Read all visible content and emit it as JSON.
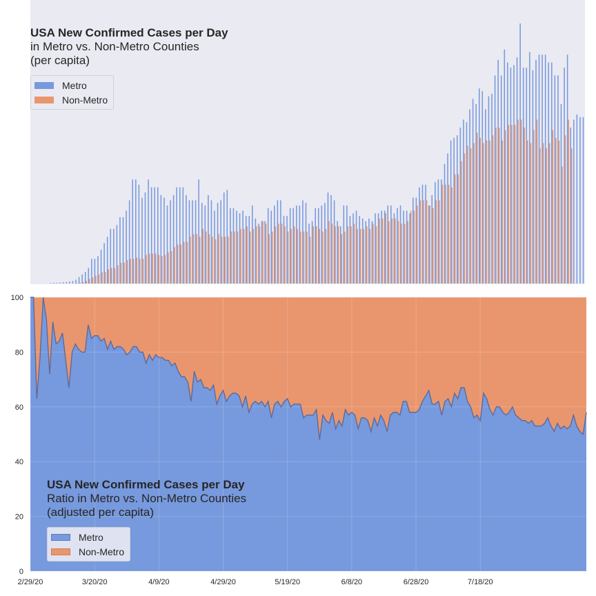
{
  "chart_data": [
    {
      "type": "bar",
      "title": "USA New Confirmed Cases per Day",
      "subtitle": "in Metro vs. Non-Metro Counties",
      "subtitle2": "(per capita)",
      "legend": {
        "placement": "top-left",
        "entries": [
          "Metro",
          "Non-Metro"
        ]
      },
      "grid": false,
      "axes_visible": false,
      "ylim": [
        0,
        100
      ],
      "x_start": "2/29/20",
      "series": [
        {
          "name": "Metro",
          "color": "#7799dd",
          "values": [
            0,
            0,
            0,
            0,
            0,
            0,
            0.2,
            0.3,
            0.3,
            0.4,
            0.5,
            0.6,
            0.8,
            1,
            1.5,
            2.5,
            3.5,
            4.5,
            6,
            9.5,
            9.5,
            10.5,
            13,
            15.5,
            18,
            21,
            21,
            22.5,
            25.5,
            25.5,
            28,
            32,
            40,
            40,
            38,
            33,
            35,
            40,
            37,
            37,
            37,
            34,
            33,
            30,
            32,
            34,
            37,
            37,
            37,
            34,
            32,
            32,
            32,
            40,
            31,
            30,
            34,
            32,
            28,
            31,
            32,
            35,
            36,
            29,
            29,
            28,
            27,
            28,
            26,
            26,
            30,
            25,
            23,
            24,
            24,
            29,
            28,
            30,
            32,
            32,
            26,
            26,
            29,
            29,
            30,
            30,
            32,
            31,
            23,
            24,
            29,
            29,
            30,
            31,
            35,
            34,
            32,
            24,
            22,
            30,
            30,
            26,
            27,
            28,
            26,
            25,
            24,
            25,
            24,
            27,
            27,
            28,
            28,
            30,
            30,
            27,
            29,
            30,
            28,
            28,
            27,
            33,
            33,
            37,
            38,
            38,
            30,
            34,
            39,
            40,
            40,
            46,
            50,
            55,
            56,
            57,
            60,
            63,
            62,
            67,
            71,
            69,
            75,
            74,
            67,
            72,
            73,
            80,
            86,
            80,
            90,
            85,
            83,
            84,
            87,
            100,
            83,
            83,
            89,
            82,
            86,
            88,
            88,
            88,
            85,
            85,
            80,
            80,
            69,
            83,
            88,
            60,
            63,
            65,
            64,
            64
          ]
        },
        {
          "name": "Non-Metro",
          "color": "#e9966e",
          "values": [
            0,
            0,
            0,
            0,
            0,
            0,
            0,
            0,
            0,
            0,
            0,
            0,
            0,
            0,
            0.2,
            0.4,
            0.6,
            1,
            1.8,
            2.4,
            3,
            3.5,
            4.3,
            4.5,
            5.5,
            6,
            6,
            7,
            8,
            8,
            9,
            9.5,
            9.5,
            10,
            9.5,
            9.5,
            11,
            11.5,
            11.5,
            11.5,
            11,
            10.5,
            11,
            12,
            12.5,
            14,
            15,
            15,
            16,
            16,
            18,
            19,
            19,
            18,
            21,
            20,
            19,
            18,
            17,
            19,
            18,
            18,
            18,
            20,
            20,
            20,
            21,
            21,
            22,
            20,
            21,
            22,
            22,
            24,
            23,
            19,
            20,
            22,
            23,
            23,
            22,
            20,
            21,
            22,
            21,
            20,
            20,
            20,
            18,
            22,
            22,
            21,
            20,
            21,
            24,
            23,
            22,
            22,
            19,
            20,
            22,
            22,
            23,
            21,
            21,
            21,
            22,
            21,
            23,
            22,
            25,
            25,
            27,
            24,
            25,
            25,
            24,
            23,
            23,
            24,
            28,
            28,
            30,
            32,
            32,
            32,
            30,
            29,
            32,
            32,
            38,
            38,
            38,
            37,
            42,
            42,
            47,
            50,
            53,
            52,
            54,
            58,
            56,
            54,
            55,
            55,
            57,
            60,
            60,
            55,
            59,
            61,
            61,
            61,
            63,
            63,
            60,
            55,
            54,
            59,
            63,
            52,
            54,
            52,
            54,
            59,
            56,
            55,
            45,
            57,
            63,
            52
          ]
        }
      ]
    },
    {
      "type": "area",
      "title": "USA New Confirmed Cases per Day",
      "subtitle": "Ratio in Metro vs. Non-Metro Counties",
      "subtitle2": "(adjusted per capita)",
      "legend": {
        "placement": "bottom-left",
        "entries": [
          "Metro",
          "Non-Metro"
        ]
      },
      "grid": true,
      "ylim": [
        0,
        100
      ],
      "yticks": [
        "0",
        "20",
        "40",
        "60",
        "80",
        "100"
      ],
      "xticks": [
        "2/29/20",
        "3/20/20",
        "4/9/20",
        "4/29/20",
        "5/19/20",
        "6/8/20",
        "6/28/20",
        "7/18/20"
      ],
      "series": [
        {
          "name": "Metro",
          "color": "#7799dd",
          "values": [
            100,
            100,
            63,
            78,
            100,
            92,
            72,
            91,
            83,
            84,
            87,
            77,
            67,
            80,
            83,
            81,
            80,
            80,
            90,
            85,
            86,
            86,
            84,
            85,
            81,
            84,
            81,
            82,
            82,
            81,
            79,
            80,
            82,
            82,
            80,
            80,
            76,
            79,
            77,
            79,
            78,
            78,
            77,
            77,
            75,
            76,
            73,
            71,
            71,
            69,
            62,
            73,
            69,
            70,
            67,
            67,
            66,
            68,
            61,
            64,
            66,
            62,
            64,
            65,
            65,
            64,
            60,
            64,
            58,
            61,
            62,
            61,
            62,
            60,
            62,
            56,
            61,
            62,
            60,
            62,
            63,
            60,
            61,
            61,
            61,
            56,
            57,
            57,
            57,
            59,
            48,
            57,
            55,
            54,
            58,
            52,
            55,
            53,
            59,
            57,
            58,
            57,
            52,
            56,
            56,
            55,
            51,
            56,
            53,
            57,
            55,
            51,
            57,
            58,
            58,
            57,
            62,
            62,
            58,
            58,
            58,
            59,
            62,
            64,
            66,
            61,
            61,
            62,
            57,
            62,
            63,
            60,
            65,
            63,
            67,
            67,
            62,
            60,
            56,
            57,
            55,
            65,
            63,
            59,
            57,
            60,
            60,
            58,
            57,
            58,
            60,
            57,
            56,
            55,
            55,
            54,
            55,
            53,
            53,
            53,
            54,
            56,
            53,
            51,
            54,
            52,
            53,
            52,
            53,
            57,
            53,
            51,
            50,
            58
          ]
        },
        {
          "name": "Non-Metro",
          "color": "#e9966e"
        }
      ]
    }
  ]
}
